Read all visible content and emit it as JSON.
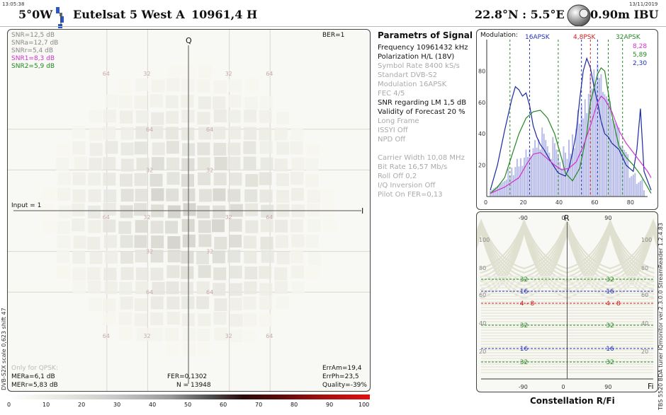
{
  "header": {
    "time": "13:05:38",
    "date": "13/11/2019",
    "orbit": "5°0W",
    "satellite": "Eutelsat 5 West A",
    "frequency_pol": "10961,4  H",
    "location": "22.8°N : 5.5°E",
    "dish": "0.90m  IBU"
  },
  "constellation": {
    "axis_q": "Q",
    "axis_i": "I",
    "ber": "BER=1",
    "input": "Input = 1",
    "snr_lines": [
      {
        "text": "SNR=12,5 dB",
        "color": "#888888"
      },
      {
        "text": "SNRa=12,7 dB",
        "color": "#888888"
      },
      {
        "text": "SNRr=5,4 dB",
        "color": "#888888"
      },
      {
        "text": "SNR1=8,3 dB",
        "color": "#cc33cc"
      },
      {
        "text": "SNR2=5,9 dB",
        "color": "#228822"
      }
    ],
    "only_qpsk": "Only for QPSK:",
    "mer_a": "MERa=6,1 dB",
    "mer_r": "MERr=5,83 dB",
    "fer": "FER=0,1302",
    "n": "N = 13948",
    "err_am": "ErrAm=19,4",
    "err_ph": "ErrPh=23,5",
    "quality": "Quality=-39%",
    "tick_labels": [
      "64",
      "32",
      "32",
      "64"
    ]
  },
  "side_left": "DVB-S2X  scale 0,623  shift 47",
  "side_right": "TBS 5520 BDA tuner    IQmonitor  ver.2.3.0.0   StreamReader 1.2.4.83",
  "params": {
    "title": "Parametrs of Signal :",
    "lines": [
      {
        "text": "Frequency  10961432 kHz",
        "active": true
      },
      {
        "text": "Polarization   H/L (18V)",
        "active": true
      },
      {
        "text": "Symbol Rate  8400 kS/s",
        "active": false
      },
      {
        "text": "Standart  DVB-S2",
        "active": false
      },
      {
        "text": "Modulation  16APSK",
        "active": false
      },
      {
        "text": "FEC  4/5",
        "active": false
      },
      {
        "text": "SNR regarding LM  1,5 dB",
        "active": true
      },
      {
        "text": "Validity of Forecast  20 %",
        "active": true
      },
      {
        "text": "Long  Frame",
        "active": false
      },
      {
        "text": "ISSYI  Off",
        "active": false
      },
      {
        "text": "NPD  Off",
        "active": false
      },
      {
        "text": "",
        "active": false
      },
      {
        "text": "Carrier Width  10,08 MHz",
        "active": false
      },
      {
        "text": "Bit Rate  16,57 Mb/s",
        "active": false
      },
      {
        "text": "Roll Off  0,2",
        "active": false
      },
      {
        "text": "I/Q Inversion  Off",
        "active": false
      },
      {
        "text": "Pilot   On       FER=0,13",
        "active": false
      }
    ]
  },
  "chart_data": [
    {
      "type": "line",
      "title": "Modulation:",
      "xlim": [
        0,
        90
      ],
      "ylim": [
        0,
        100
      ],
      "x_ticks": [
        0,
        20,
        40,
        60,
        80
      ],
      "y_ticks": [
        20,
        40,
        60,
        80
      ],
      "markers": [
        {
          "label": "16APSK",
          "color": "#2233bb",
          "x": [
            24,
            53,
            62
          ]
        },
        {
          "label": "4,8PSK",
          "color": "#cc2222",
          "x": [
            58
          ]
        },
        {
          "label": "32APSK",
          "color": "#228822",
          "x": [
            13,
            40,
            68,
            76
          ]
        }
      ],
      "legend_values": [
        {
          "text": "8,28",
          "color": "#cc33cc"
        },
        {
          "text": "5,89",
          "color": "#228822"
        },
        {
          "text": "2,30",
          "color": "#2233bb"
        }
      ],
      "series": [
        {
          "color": "#1a2aa0",
          "x": [
            2,
            6,
            10,
            14,
            16,
            18,
            20,
            22,
            24,
            26,
            28,
            30,
            32,
            34,
            36,
            40,
            44,
            46,
            48,
            50,
            52,
            54,
            56,
            58,
            60,
            62,
            64,
            66,
            68,
            70,
            74,
            78,
            82,
            84,
            86,
            88,
            92
          ],
          "y": [
            4,
            20,
            42,
            62,
            70,
            68,
            64,
            66,
            58,
            45,
            38,
            33,
            30,
            26,
            22,
            15,
            13,
            18,
            28,
            40,
            62,
            80,
            88,
            82,
            70,
            60,
            48,
            40,
            38,
            34,
            30,
            20,
            16,
            30,
            56,
            16,
            4
          ]
        },
        {
          "color": "#228822",
          "x": [
            2,
            6,
            10,
            14,
            18,
            22,
            26,
            30,
            34,
            38,
            42,
            44,
            48,
            52,
            56,
            58,
            62,
            64,
            66,
            70,
            74,
            78,
            82,
            86,
            90,
            92
          ],
          "y": [
            2,
            6,
            12,
            26,
            40,
            50,
            54,
            55,
            50,
            40,
            24,
            15,
            10,
            18,
            40,
            60,
            78,
            82,
            80,
            52,
            32,
            25,
            20,
            14,
            6,
            2
          ]
        },
        {
          "color": "#cc33cc",
          "x": [
            2,
            6,
            10,
            14,
            18,
            22,
            26,
            30,
            34,
            38,
            42,
            46,
            50,
            54,
            58,
            62,
            64,
            66,
            70,
            74,
            78,
            82,
            86,
            90,
            92
          ],
          "y": [
            2,
            4,
            6,
            9,
            12,
            20,
            27,
            28,
            24,
            20,
            17,
            18,
            22,
            32,
            45,
            60,
            64,
            62,
            54,
            42,
            34,
            28,
            22,
            16,
            12
          ]
        }
      ]
    },
    {
      "type": "line",
      "title": "Constellation  R/Fi",
      "xlabel": "Fi",
      "ylabel": "R",
      "xlim": [
        -180,
        180
      ],
      "x_ticks": [
        -90,
        0,
        90
      ],
      "y_ticks": [
        100,
        80,
        60,
        40,
        20
      ],
      "levels": [
        {
          "label": "32",
          "color": "#228822"
        },
        {
          "label": "16",
          "color": "#2233bb"
        },
        {
          "label": "4 - 8",
          "color": "#cc2222"
        },
        {
          "label": "32",
          "color": "#228822"
        },
        {
          "label": "16",
          "color": "#2233bb"
        },
        {
          "label": "32",
          "color": "#228822"
        }
      ]
    }
  ],
  "colorbar": {
    "labels": [
      "0",
      "10",
      "20",
      "30",
      "40",
      "50",
      "60",
      "70",
      "80",
      "90",
      "100"
    ]
  }
}
